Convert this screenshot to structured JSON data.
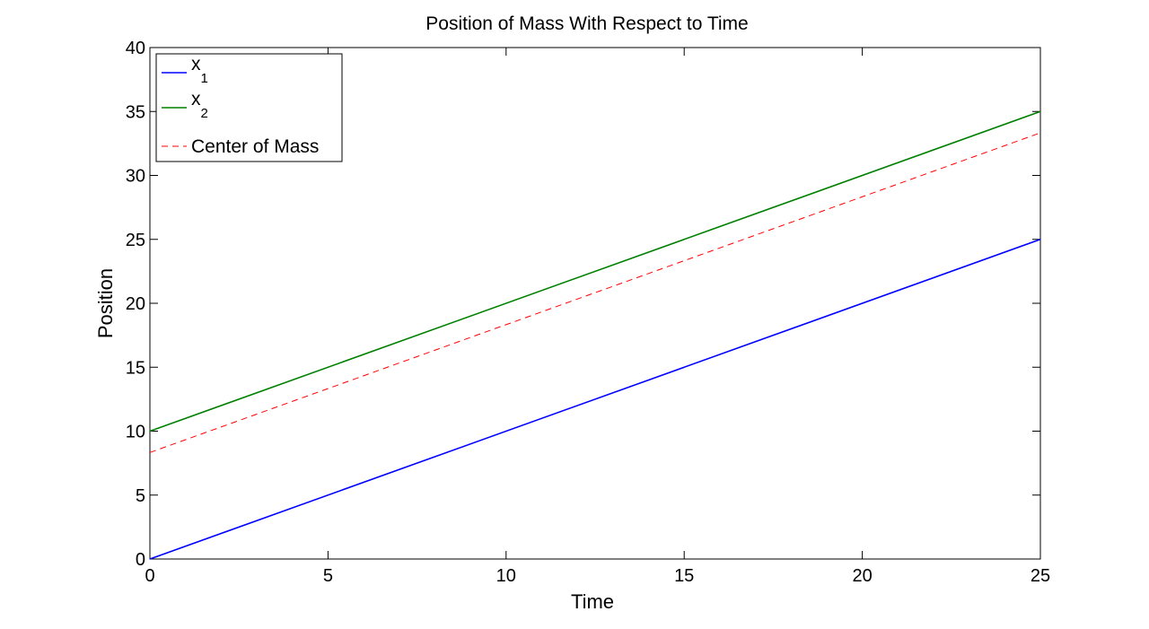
{
  "chart_data": {
    "type": "line",
    "title": "Position of Mass With Respect to Time",
    "xlabel": "Time",
    "ylabel": "Position",
    "xlim": [
      0,
      25
    ],
    "ylim": [
      0,
      40
    ],
    "xticks": [
      0,
      5,
      10,
      15,
      20,
      25
    ],
    "yticks": [
      0,
      5,
      10,
      15,
      20,
      25,
      30,
      35,
      40
    ],
    "xtick_labels": [
      "0",
      "5",
      "10",
      "15",
      "20",
      "25"
    ],
    "ytick_labels": [
      "0",
      "5",
      "10",
      "15",
      "20",
      "25",
      "30",
      "35",
      "40"
    ],
    "grid": false,
    "legend_position": "top-left",
    "series": [
      {
        "name": "x",
        "subscript": "1",
        "color": "#0000ff",
        "dash": "solid",
        "x": [
          0,
          25
        ],
        "y": [
          0,
          25
        ]
      },
      {
        "name": "x",
        "subscript": "2",
        "color": "#008000",
        "dash": "solid",
        "x": [
          0,
          25
        ],
        "y": [
          10,
          35
        ]
      },
      {
        "name": "Center of Mass",
        "subscript": "",
        "color": "#ff0000",
        "dash": "dashed",
        "x": [
          0,
          25
        ],
        "y": [
          8.33,
          33.33
        ]
      }
    ]
  }
}
